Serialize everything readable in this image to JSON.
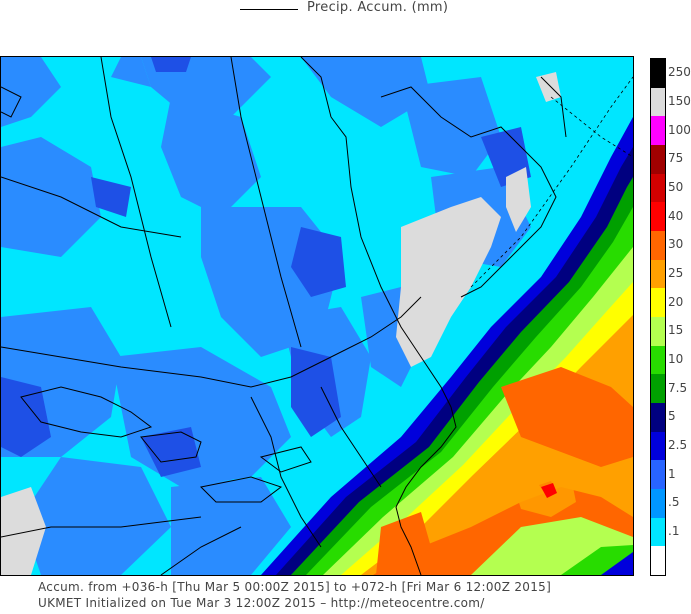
{
  "legend": {
    "label": "Precip. Accum. (mm)"
  },
  "colorbar": {
    "levels": [
      {
        "label": "250",
        "color": "#000000"
      },
      {
        "label": "150",
        "color": "#dcdcdc"
      },
      {
        "label": "100",
        "color": "#ff00ff"
      },
      {
        "label": "75",
        "color": "#a00000"
      },
      {
        "label": "50",
        "color": "#d20000"
      },
      {
        "label": "40",
        "color": "#ff0000"
      },
      {
        "label": "30",
        "color": "#ff6600"
      },
      {
        "label": "25",
        "color": "#ffa000"
      },
      {
        "label": "20",
        "color": "#ffff00"
      },
      {
        "label": "15",
        "color": "#b4ff50"
      },
      {
        "label": "10",
        "color": "#28dc00"
      },
      {
        "label": "7.5",
        "color": "#00a000"
      },
      {
        "label": "5",
        "color": "#000080"
      },
      {
        "label": "2.5",
        "color": "#0000dc"
      },
      {
        "label": "1",
        "color": "#2864ff"
      },
      {
        "label": ".5",
        "color": "#0096ff"
      },
      {
        "label": ".1",
        "color": "#00e6ff"
      },
      {
        "label": "",
        "color": "#ffffff"
      }
    ]
  },
  "footer": {
    "line1": "Accum. from +036-h [Thu Mar 5 00:00Z 2015] to +072-h [Fri Mar 6 12:00Z 2015]",
    "line2": "UKMET Initialized on Tue Mar 3 12:00Z 2015 – http://meteocentre.com/"
  },
  "colors": {
    "land_background": "#00e6ff",
    "border": "#000000"
  }
}
